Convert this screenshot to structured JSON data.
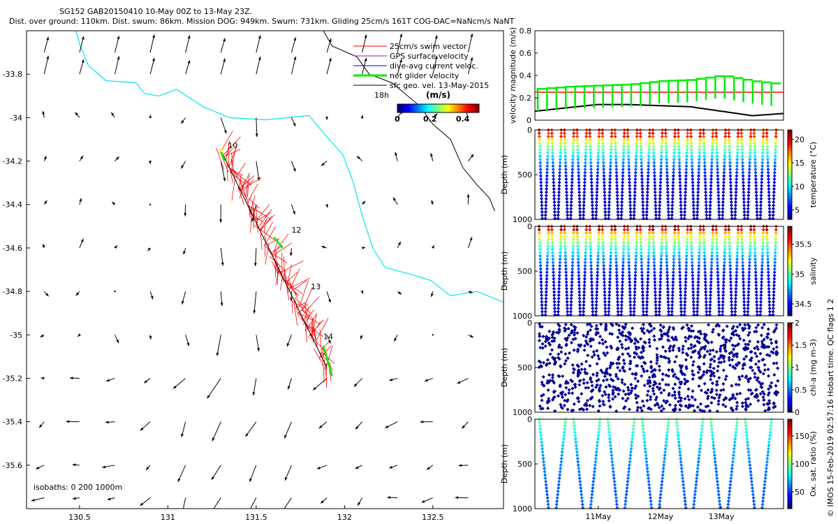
{
  "header": {
    "title_line1": "SG152 GAB20150410 10-May 00Z to 13-May 23Z.",
    "title_line2": "Dist. over ground: 110km. Dist. swum: 86km. Mission DOG: 949km. Swum: 731km. Gliding 25cm/s 161T COG-DAC=NaNcm/s NaNT"
  },
  "credit": "© IMOS 15-Feb-2019 02:57:16 Hobart time. QC flags 1  2",
  "colors": {
    "swim": "#ff0000",
    "gps": "#cc00cc",
    "dac": "#0000cc",
    "net": "#00ee00",
    "sfc": "#000000",
    "coast": "#00e5ee",
    "isobath": "#000000"
  },
  "chart_data": [
    {
      "id": "map",
      "type": "scatter",
      "title": "glider track and velocity vectors",
      "xlabel": "",
      "ylabel": "",
      "xlim": [
        130.2,
        132.9
      ],
      "ylim": [
        -35.8,
        -33.6
      ],
      "xticks": [
        130.5,
        131,
        131.5,
        132,
        132.5
      ],
      "xtick_labels": [
        "130.5",
        "131",
        "131.5",
        "132",
        "132.5"
      ],
      "yticks": [
        -35.6,
        -35.4,
        -35.2,
        -35,
        -34.8,
        -34.6,
        -34.4,
        -34.2,
        -34,
        -33.8
      ],
      "ytick_labels": [
        "-35.6",
        "-35.4",
        "-35.2",
        "-35",
        "-34.8",
        "-34.6",
        "-34.4",
        "-34.2",
        "-34",
        "-33.8"
      ],
      "legend": {
        "location": "top-right",
        "entries": [
          "25cm/s swim vector",
          "GPS surface velocity",
          "dive-avg current veloc.",
          "net glider velocity",
          "sfc geo. vel. 13-May-2015"
        ]
      },
      "time_label": "18h",
      "colorbar": {
        "label": "(m/s)",
        "ticks": [
          "0",
          "0.2",
          "0.4"
        ],
        "range": [
          0,
          0.5
        ]
      },
      "isobath_label": "isobaths: 0   200   1000m",
      "track_start": [
        131.3,
        -34.15
      ],
      "track_end": [
        131.9,
        -35.15
      ],
      "day_labels": [
        {
          "text": "10",
          "lon": 131.34,
          "lat": -34.14
        },
        {
          "text": "12",
          "lon": 131.7,
          "lat": -34.53
        },
        {
          "text": "13",
          "lon": 131.81,
          "lat": -34.79
        },
        {
          "text": "14",
          "lon": 131.88,
          "lat": -35.02
        }
      ],
      "coast_200": [
        [
          130.48,
          -33.6
        ],
        [
          130.5,
          -33.66
        ],
        [
          130.55,
          -33.76
        ],
        [
          130.65,
          -33.83
        ],
        [
          130.82,
          -33.84
        ],
        [
          130.87,
          -33.89
        ],
        [
          130.95,
          -33.9
        ],
        [
          131.05,
          -33.87
        ],
        [
          131.2,
          -33.95
        ],
        [
          131.35,
          -34.0
        ],
        [
          131.55,
          -34.01
        ],
        [
          131.8,
          -33.99
        ],
        [
          131.88,
          -34.07
        ],
        [
          131.99,
          -34.17
        ],
        [
          132.05,
          -34.3
        ],
        [
          132.1,
          -34.45
        ],
        [
          132.16,
          -34.6
        ],
        [
          132.23,
          -34.69
        ],
        [
          132.37,
          -34.72
        ],
        [
          132.49,
          -34.75
        ],
        [
          132.6,
          -34.82
        ],
        [
          132.75,
          -34.8
        ],
        [
          132.9,
          -34.85
        ]
      ],
      "coast_1000": [
        [
          131.88,
          -33.6
        ],
        [
          131.93,
          -33.67
        ],
        [
          132.07,
          -33.72
        ],
        [
          132.14,
          -33.8
        ],
        [
          132.27,
          -33.84
        ],
        [
          132.43,
          -33.95
        ],
        [
          132.5,
          -34.03
        ],
        [
          132.6,
          -34.1
        ],
        [
          132.67,
          -34.23
        ],
        [
          132.75,
          -34.31
        ],
        [
          132.82,
          -34.37
        ],
        [
          132.85,
          -34.43
        ]
      ],
      "net_vectors": [
        [
          131.3,
          -34.15,
          0.02,
          -0.05
        ],
        [
          131.6,
          -34.55,
          0.05,
          -0.05
        ],
        [
          131.88,
          -35.05,
          0.05,
          -0.14
        ]
      ],
      "grid_lons": [
        130.3,
        130.5,
        130.7,
        130.9,
        131.1,
        131.3,
        131.5,
        131.7,
        131.9,
        132.1,
        132.3,
        132.5,
        132.7
      ],
      "grid_lats": [
        -33.7,
        -33.8,
        -34.0,
        -34.2,
        -34.4,
        -34.6,
        -34.8,
        -35.0,
        -35.2,
        -35.4,
        -35.6,
        -35.75
      ]
    },
    {
      "id": "velocity",
      "type": "line",
      "ylabel": "velocity magnitude (m/s)",
      "xlabel": "",
      "ylim": [
        0,
        0.8
      ],
      "yticks": [
        0,
        0.2,
        0.4,
        0.6,
        0.8
      ],
      "series": [
        {
          "name": "swim",
          "color": "#ff0000",
          "values": [
            0.25,
            0.25,
            0.25,
            0.25,
            0.25,
            0.25,
            0.25,
            0.25,
            0.25
          ]
        },
        {
          "name": "dac",
          "color": "#000000",
          "values": [
            0.08,
            0.11,
            0.14,
            0.14,
            0.13,
            0.12,
            0.08,
            0.04,
            0.06
          ]
        },
        {
          "name": "net",
          "color": "#00ee00",
          "values": [
            0.28,
            0.3,
            0.31,
            0.32,
            0.35,
            0.36,
            0.4,
            0.35,
            0.32
          ]
        }
      ]
    },
    {
      "id": "temperature",
      "type": "scatter",
      "ylabel": "Depth (m)",
      "clabel": "temperature (°C)",
      "ylim": [
        0,
        1000
      ],
      "yticks": [
        0,
        500,
        1000
      ],
      "clim": [
        3,
        22
      ],
      "cticks": [
        5,
        10,
        15,
        20
      ],
      "dives": 38,
      "surface_value": 20,
      "deep_value": 4
    },
    {
      "id": "salinity",
      "type": "scatter",
      "ylabel": "Depth (m)",
      "clabel": "salinity",
      "ylim": [
        0,
        1000
      ],
      "yticks": [
        0,
        500,
        1000
      ],
      "clim": [
        34.3,
        35.8
      ],
      "cticks": [
        34.5,
        35,
        35.5
      ],
      "dives": 38,
      "surface_value": 35.6,
      "deep_value": 34.4
    },
    {
      "id": "chla",
      "type": "scatter",
      "ylabel": "Depth (m)",
      "clabel": "chl-a (mg m-3)",
      "ylim": [
        0,
        1000
      ],
      "yticks": [
        0,
        500,
        1000
      ],
      "clim": [
        0,
        2
      ],
      "cticks": [
        0,
        0.5,
        1,
        1.5,
        2
      ],
      "dives": 38,
      "surface_value": 0.05,
      "deep_value": 0.02
    },
    {
      "id": "oxygen",
      "type": "scatter",
      "ylabel": "Depth (m)",
      "clabel": "Ox. sat. ratio (%)",
      "ylim": [
        0,
        1000
      ],
      "yticks": [
        0,
        500,
        1000
      ],
      "clim": [
        20,
        180
      ],
      "cticks": [
        50,
        100,
        150
      ],
      "dives": 14,
      "surface_value": 100,
      "deep_value": 55,
      "xtick_labels": [
        "11May",
        "12May",
        "13May"
      ]
    }
  ]
}
